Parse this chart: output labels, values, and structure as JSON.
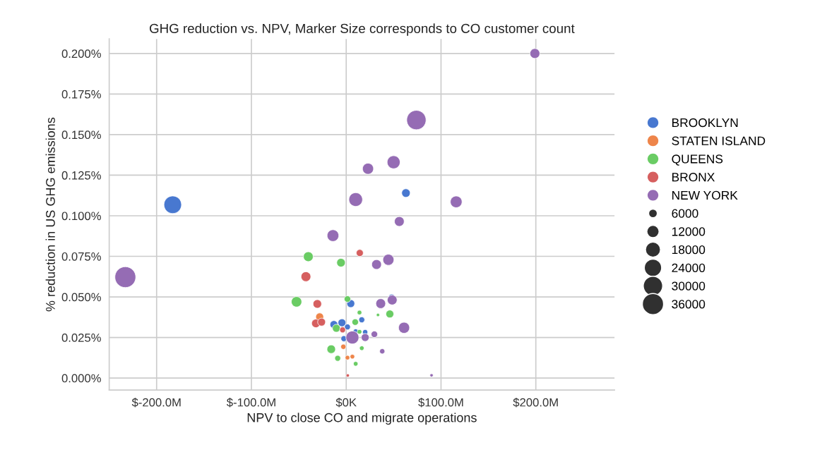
{
  "chart_data": {
    "type": "bubble",
    "title": "GHG reduction vs. NPV, Marker Size corresponds to CO customer count",
    "xlabel": "NPV to close CO and migrate operations",
    "ylabel": "% reduction in US GHG emissions",
    "xlim": [
      -250,
      283
    ],
    "ylim": [
      -0.0074,
      0.209
    ],
    "xticks": [
      {
        "value": -200,
        "label": "$-200.0M"
      },
      {
        "value": -100,
        "label": "$-100.0M"
      },
      {
        "value": 0,
        "label": "$0K"
      },
      {
        "value": 100,
        "label": "$100.0M"
      },
      {
        "value": 200,
        "label": "$200.0M"
      }
    ],
    "yticks": [
      {
        "value": 0,
        "label": "0.000%"
      },
      {
        "value": 0.025,
        "label": "0.025%"
      },
      {
        "value": 0.05,
        "label": "0.050%"
      },
      {
        "value": 0.075,
        "label": "0.075%"
      },
      {
        "value": 0.1,
        "label": "0.100%"
      },
      {
        "value": 0.125,
        "label": "0.125%"
      },
      {
        "value": 0.15,
        "label": "0.150%"
      },
      {
        "value": 0.175,
        "label": "0.175%"
      },
      {
        "value": 0.2,
        "label": "0.200%"
      }
    ],
    "grid": true,
    "legend": "right",
    "size_legend": [
      6000,
      12000,
      18000,
      24000,
      30000,
      36000
    ],
    "series": [
      {
        "name": "BROOKLYN",
        "color": "#4878d0",
        "x": [
          -183,
          63,
          4.8,
          48,
          16.4,
          -13,
          -4.5,
          1.3,
          -2.5,
          20,
          10
        ],
        "values": [
          0.1068,
          0.114,
          0.0459,
          0.0497,
          0.0359,
          0.033,
          0.0341,
          0.0315,
          0.0243,
          0.0283,
          0.0287
        ],
        "sizes": [
          24800,
          5800,
          4900,
          3500,
          2800,
          4900,
          4900,
          2800,
          2800,
          2200,
          2200
        ]
      },
      {
        "name": "STATEN ISLAND",
        "color": "#ee854a",
        "x": [
          -28,
          -3,
          1.3,
          6.5
        ],
        "values": [
          0.0377,
          0.0193,
          0.0126,
          0.0132
        ],
        "sizes": [
          4900,
          2200,
          1700,
          1700
        ]
      },
      {
        "name": "QUEENS",
        "color": "#6acc64",
        "x": [
          -40,
          -5.5,
          -52.4,
          1.3,
          14,
          33.5,
          46,
          9.5,
          -10.4,
          14,
          -15.8,
          16.4,
          -9,
          10
        ],
        "values": [
          0.0748,
          0.0711,
          0.047,
          0.0487,
          0.0404,
          0.0389,
          0.0395,
          0.0345,
          0.0307,
          0.0285,
          0.0178,
          0.0184,
          0.0122,
          0.0088
        ],
        "sizes": [
          7600,
          5800,
          8700,
          3400,
          1700,
          850,
          4900,
          3400,
          4900,
          1700,
          5800,
          1700,
          2800,
          1700
        ]
      },
      {
        "name": "BRONX",
        "color": "#d65f5f",
        "x": [
          14.3,
          -42.5,
          -30.5,
          -32,
          -26,
          -3.8,
          1.6
        ],
        "values": [
          0.0771,
          0.0625,
          0.0457,
          0.0337,
          0.0345,
          0.0297,
          0.0016
        ],
        "sizes": [
          4000,
          7600,
          5800,
          5800,
          4900,
          2800,
          850
        ]
      },
      {
        "name": "NEW YORK",
        "color": "#956cb4",
        "x": [
          199,
          74,
          50,
          23,
          10,
          116,
          56,
          -14,
          44.5,
          32,
          -233,
          36.4,
          48.5,
          61,
          6.5,
          20,
          29.7,
          38,
          90
        ],
        "values": [
          0.2,
          0.159,
          0.133,
          0.129,
          0.11,
          0.1086,
          0.0965,
          0.0878,
          0.0729,
          0.07,
          0.0622,
          0.0459,
          0.0481,
          0.031,
          0.025,
          0.025,
          0.027,
          0.0165,
          0.0017
        ],
        "sizes": [
          7800,
          30000,
          13500,
          9800,
          15000,
          11000,
          7600,
          11000,
          9800,
          7600,
          35000,
          7600,
          7600,
          9800,
          13500,
          4900,
          3400,
          2200,
          850
        ]
      }
    ]
  }
}
